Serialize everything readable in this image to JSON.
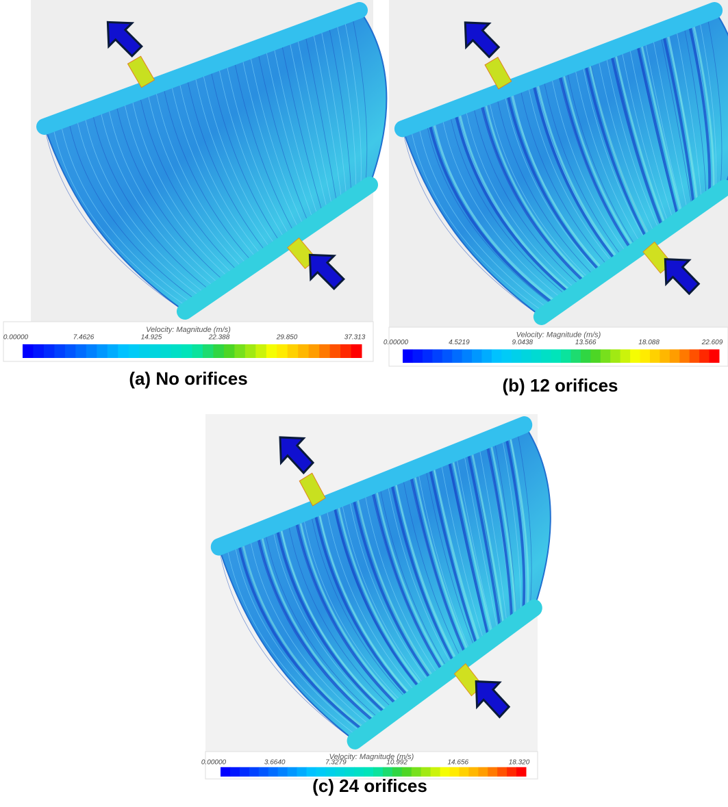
{
  "panels": [
    {
      "colorbar": {
        "title": "Velocity: Magnitude (m/s)",
        "ticks": [
          "0.00000",
          "7.4626",
          "14.925",
          "22.388",
          "29.850",
          "37.313"
        ]
      },
      "caption": "(a) No orifices"
    },
    {
      "colorbar": {
        "title": "Velocity: Magnitude (m/s)",
        "ticks": [
          "0.00000",
          "4.5219",
          "9.0438",
          "13.566",
          "18.088",
          "22.609"
        ]
      },
      "caption": "(b) 12 orifices"
    },
    {
      "colorbar": {
        "title": "Velocity: Magnitude (m/s)",
        "ticks": [
          "0.00000",
          "3.6640",
          "7.3279",
          "10.992",
          "14.656",
          "18.320"
        ]
      },
      "caption": "(c) 24 orifices"
    }
  ]
}
